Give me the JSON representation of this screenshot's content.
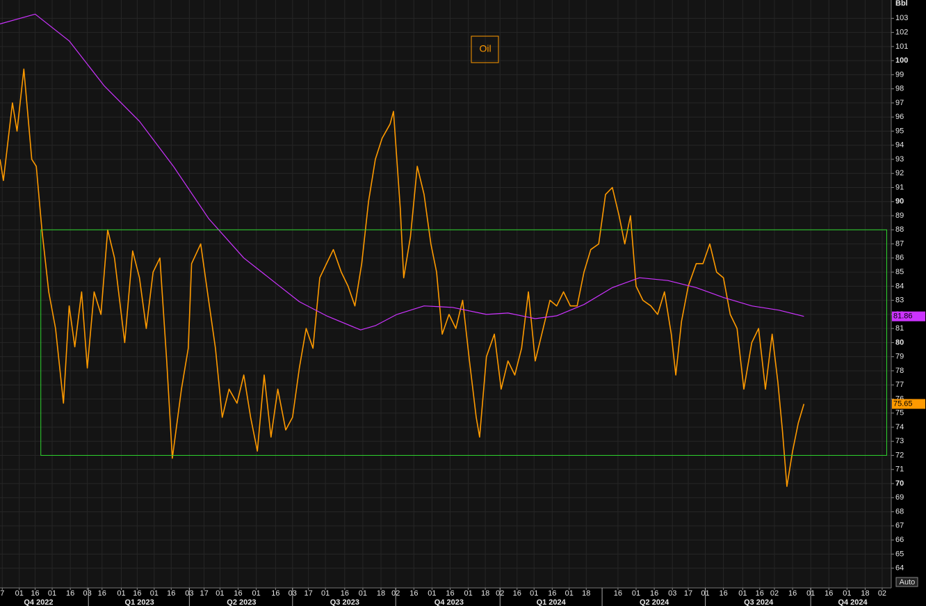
{
  "chart_data": {
    "type": "line",
    "unit": "Bbl",
    "button": "Auto",
    "xlim": [
      0,
      786
    ],
    "ylim": [
      62.6,
      104.3
    ],
    "yticks": [
      64,
      65,
      66,
      67,
      68,
      69,
      70,
      71,
      72,
      73,
      74,
      75,
      76,
      77,
      78,
      79,
      80,
      81,
      82,
      83,
      84,
      85,
      86,
      87,
      88,
      89,
      90,
      91,
      92,
      93,
      94,
      95,
      96,
      97,
      98,
      99,
      100,
      101,
      102,
      103
    ],
    "xticks": [
      {
        "value": 2,
        "label": "7"
      },
      {
        "value": 17,
        "label": "01"
      },
      {
        "value": 31,
        "label": "16"
      },
      {
        "value": 46,
        "label": "01"
      },
      {
        "value": 62,
        "label": "16"
      },
      {
        "value": 77,
        "label": "03"
      },
      {
        "value": 90,
        "label": "16"
      },
      {
        "value": 107,
        "label": "01"
      },
      {
        "value": 121,
        "label": "16"
      },
      {
        "value": 136,
        "label": "01"
      },
      {
        "value": 151,
        "label": "16"
      },
      {
        "value": 167,
        "label": "03"
      },
      {
        "value": 180,
        "label": "17"
      },
      {
        "value": 194,
        "label": "01"
      },
      {
        "value": 210,
        "label": "16"
      },
      {
        "value": 226,
        "label": "01"
      },
      {
        "value": 243,
        "label": "16"
      },
      {
        "value": 258,
        "label": "03"
      },
      {
        "value": 272,
        "label": "17"
      },
      {
        "value": 287,
        "label": "01"
      },
      {
        "value": 304,
        "label": "16"
      },
      {
        "value": 320,
        "label": "01"
      },
      {
        "value": 336,
        "label": "18"
      },
      {
        "value": 349,
        "label": "02"
      },
      {
        "value": 365,
        "label": "16"
      },
      {
        "value": 381,
        "label": "01"
      },
      {
        "value": 397,
        "label": "16"
      },
      {
        "value": 413,
        "label": "01"
      },
      {
        "value": 428,
        "label": "18"
      },
      {
        "value": 441,
        "label": "02"
      },
      {
        "value": 456,
        "label": "16"
      },
      {
        "value": 471,
        "label": "01"
      },
      {
        "value": 487,
        "label": "16"
      },
      {
        "value": 502,
        "label": "01"
      },
      {
        "value": 517,
        "label": "18"
      },
      {
        "value": 545,
        "label": "16"
      },
      {
        "value": 561,
        "label": "01"
      },
      {
        "value": 577,
        "label": "16"
      },
      {
        "value": 593,
        "label": "03"
      },
      {
        "value": 607,
        "label": "17"
      },
      {
        "value": 622,
        "label": "01"
      },
      {
        "value": 638,
        "label": "16"
      },
      {
        "value": 655,
        "label": "01"
      },
      {
        "value": 670,
        "label": "16"
      },
      {
        "value": 683,
        "label": "02"
      },
      {
        "value": 699,
        "label": "16"
      },
      {
        "value": 715,
        "label": "01"
      },
      {
        "value": 731,
        "label": "16"
      },
      {
        "value": 747,
        "label": "01"
      },
      {
        "value": 763,
        "label": "18"
      },
      {
        "value": 778,
        "label": "02"
      }
    ],
    "quarters": [
      {
        "value": 34,
        "label": "Q4 2022"
      },
      {
        "value": 123,
        "label": "Q1 2023"
      },
      {
        "value": 213,
        "label": "Q2 2023"
      },
      {
        "value": 304,
        "label": "Q3 2023"
      },
      {
        "value": 396,
        "label": "Q4 2023"
      },
      {
        "value": 486,
        "label": "Q1 2024"
      },
      {
        "value": 577,
        "label": "Q2 2024"
      },
      {
        "value": 669,
        "label": "Q3 2024"
      },
      {
        "value": 752,
        "label": "Q4 2024"
      }
    ],
    "quarter_bounds": [
      78,
      167,
      258,
      349,
      441,
      531,
      622,
      715
    ],
    "grid": true,
    "range_box": {
      "x": [
        36,
        782
      ],
      "y": [
        72,
        88
      ],
      "color": "#2fd52f"
    },
    "series": [
      {
        "name": "Oil",
        "color": "#ff9a00",
        "x": [
          0,
          3,
          11,
          15,
          21,
          28,
          32,
          37,
          43,
          49,
          56,
          61,
          66,
          72,
          77,
          83,
          89,
          95,
          101,
          110,
          117,
          123,
          129,
          135,
          141,
          147,
          152,
          160,
          166,
          169,
          177,
          184,
          190,
          196,
          202,
          209,
          215,
          221,
          227,
          233,
          239,
          245,
          252,
          258,
          264,
          270,
          276,
          282,
          288,
          294,
          301,
          307,
          313,
          319,
          325,
          331,
          337,
          344,
          347,
          353,
          356,
          362,
          368,
          374,
          380,
          385,
          390,
          396,
          402,
          408,
          414,
          420,
          423,
          429,
          436,
          442,
          448,
          454,
          460,
          466,
          472,
          479,
          485,
          491,
          497,
          503,
          509,
          515,
          521,
          528,
          534,
          540,
          546,
          551,
          556,
          561,
          567,
          574,
          580,
          586,
          592,
          596,
          601,
          607,
          614,
          620,
          626,
          632,
          638,
          644,
          650,
          656,
          663,
          669,
          675,
          681,
          686,
          690,
          694,
          699,
          704,
          709
        ],
        "values": [
          93,
          91.5,
          97,
          95,
          99.4,
          93,
          92.5,
          88,
          83.6,
          81,
          75.7,
          82.6,
          79.7,
          83.6,
          78.2,
          83.6,
          82,
          88,
          86,
          80,
          86.5,
          84.6,
          81,
          85,
          86,
          78.7,
          71.8,
          76.7,
          79.6,
          85.6,
          87,
          83,
          79.6,
          74.7,
          76.7,
          75.7,
          77.7,
          74.7,
          72.3,
          77.7,
          73.3,
          76.7,
          73.8,
          74.7,
          78.2,
          81,
          79.6,
          84.6,
          85.6,
          86.6,
          85,
          84,
          82.6,
          85.6,
          90,
          93,
          94.5,
          95.5,
          96.4,
          89.5,
          84.6,
          87.5,
          92.5,
          90.5,
          87,
          85,
          80.6,
          82,
          81,
          83,
          78.7,
          74.7,
          73.3,
          79,
          80.6,
          76.7,
          78.7,
          77.7,
          79.6,
          83.6,
          78.7,
          81,
          83,
          82.6,
          83.6,
          82.6,
          82.6,
          85,
          86.6,
          87,
          90.5,
          91,
          89,
          87,
          89,
          84,
          83,
          82.6,
          82,
          83.6,
          80.6,
          77.7,
          81.5,
          84,
          85.6,
          85.6,
          87,
          85,
          84.6,
          82,
          81,
          76.7,
          80,
          81,
          76.7,
          80.6,
          77.2,
          73.8,
          69.8,
          72.3,
          74.3,
          75.65
        ]
      },
      {
        "color": "#cc33ff",
        "x": [
          0,
          31,
          61,
          92,
          123,
          153,
          184,
          215,
          245,
          264,
          288,
          318,
          331,
          350,
          374,
          399,
          429,
          448,
          472,
          491,
          515,
          540,
          564,
          589,
          614,
          638,
          663,
          687,
          709
        ],
        "values": [
          102.6,
          103.3,
          101.4,
          98.2,
          95.7,
          92.5,
          88.8,
          86,
          84.1,
          82.9,
          81.9,
          80.9,
          81.2,
          82,
          82.6,
          82.5,
          82,
          82.1,
          81.7,
          81.9,
          82.7,
          83.9,
          84.6,
          84.4,
          83.9,
          83.2,
          82.6,
          82.3,
          81.86
        ]
      }
    ]
  }
}
